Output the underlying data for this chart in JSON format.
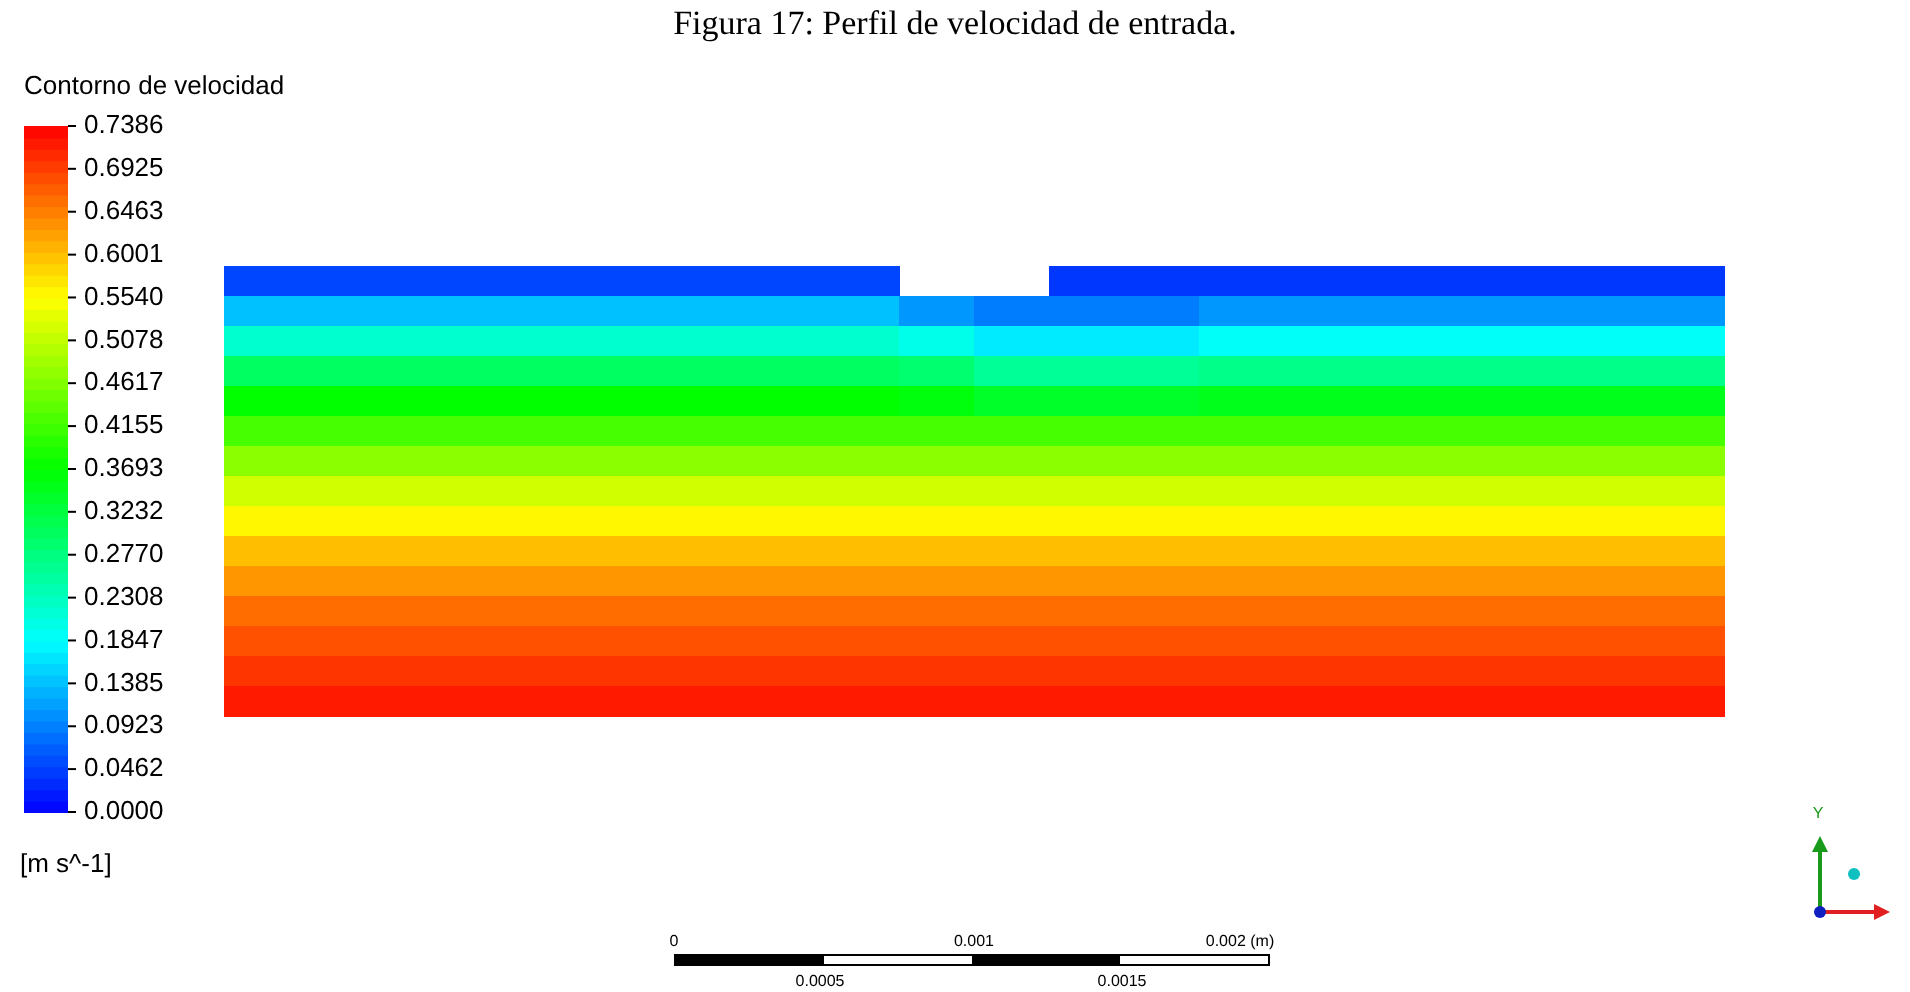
{
  "chart_data": {
    "type": "heatmap",
    "title": "Figura 17: Perfil de velocidad de entrada.",
    "clabel": "Contorno de velocidad",
    "categories": [
      null,
      null,
      null,
      null,
      null,
      null,
      null,
      null,
      null,
      null,
      null,
      null,
      null,
      null,
      null,
      null,
      null,
      null,
      null,
      null
    ],
    "y_categories": [
      null,
      null,
      null,
      null,
      null,
      null,
      null,
      null,
      null,
      null,
      null,
      null,
      null,
      null,
      null
    ],
    "cells": [
      [
        0.05,
        0.05,
        0.05,
        0.05,
        0.05,
        0.05,
        0.05,
        0.05,
        0.05,
        null,
        null,
        0.04,
        0.04,
        0.04,
        0.04,
        0.04,
        0.04,
        0.04,
        0.04,
        0.04
      ],
      [
        0.14,
        0.14,
        0.14,
        0.14,
        0.14,
        0.14,
        0.14,
        0.14,
        0.14,
        0.11,
        0.09,
        0.09,
        0.09,
        0.11,
        0.11,
        0.11,
        0.11,
        0.11,
        0.11,
        0.11
      ],
      [
        0.22,
        0.22,
        0.22,
        0.22,
        0.22,
        0.22,
        0.22,
        0.22,
        0.22,
        0.2,
        0.17,
        0.17,
        0.17,
        0.19,
        0.19,
        0.19,
        0.19,
        0.19,
        0.19,
        0.19
      ],
      [
        0.3,
        0.3,
        0.3,
        0.3,
        0.3,
        0.3,
        0.3,
        0.3,
        0.3,
        0.29,
        0.26,
        0.26,
        0.26,
        0.27,
        0.27,
        0.27,
        0.27,
        0.27,
        0.27,
        0.27
      ],
      [
        0.37,
        0.37,
        0.37,
        0.37,
        0.37,
        0.37,
        0.37,
        0.37,
        0.37,
        0.36,
        0.34,
        0.34,
        0.34,
        0.35,
        0.35,
        0.35,
        0.35,
        0.35,
        0.35,
        0.35
      ],
      [
        0.42,
        0.42,
        0.42,
        0.42,
        0.42,
        0.42,
        0.42,
        0.42,
        0.42,
        0.42,
        0.42,
        0.42,
        0.42,
        0.42,
        0.42,
        0.42,
        0.42,
        0.42,
        0.42,
        0.42
      ],
      [
        0.47,
        0.47,
        0.47,
        0.47,
        0.47,
        0.47,
        0.47,
        0.47,
        0.47,
        0.47,
        0.47,
        0.47,
        0.47,
        0.47,
        0.47,
        0.47,
        0.47,
        0.47,
        0.47,
        0.47
      ],
      [
        0.52,
        0.52,
        0.52,
        0.52,
        0.52,
        0.52,
        0.52,
        0.52,
        0.52,
        0.52,
        0.52,
        0.52,
        0.52,
        0.52,
        0.52,
        0.52,
        0.52,
        0.52,
        0.52,
        0.52
      ],
      [
        0.56,
        0.56,
        0.56,
        0.56,
        0.56,
        0.56,
        0.56,
        0.56,
        0.56,
        0.56,
        0.56,
        0.56,
        0.56,
        0.56,
        0.56,
        0.56,
        0.56,
        0.56,
        0.56,
        0.56
      ],
      [
        0.6,
        0.6,
        0.6,
        0.6,
        0.6,
        0.6,
        0.6,
        0.6,
        0.6,
        0.6,
        0.6,
        0.6,
        0.6,
        0.6,
        0.6,
        0.6,
        0.6,
        0.6,
        0.6,
        0.6
      ],
      [
        0.63,
        0.63,
        0.63,
        0.63,
        0.63,
        0.63,
        0.63,
        0.63,
        0.63,
        0.63,
        0.63,
        0.63,
        0.63,
        0.63,
        0.63,
        0.63,
        0.63,
        0.63,
        0.63,
        0.63
      ],
      [
        0.66,
        0.66,
        0.66,
        0.66,
        0.66,
        0.66,
        0.66,
        0.66,
        0.66,
        0.66,
        0.66,
        0.66,
        0.66,
        0.66,
        0.66,
        0.66,
        0.66,
        0.66,
        0.66,
        0.66
      ],
      [
        0.68,
        0.68,
        0.68,
        0.68,
        0.68,
        0.68,
        0.68,
        0.68,
        0.68,
        0.68,
        0.68,
        0.68,
        0.68,
        0.68,
        0.68,
        0.68,
        0.68,
        0.68,
        0.68,
        0.68
      ],
      [
        0.7,
        0.7,
        0.7,
        0.7,
        0.7,
        0.7,
        0.7,
        0.7,
        0.7,
        0.7,
        0.7,
        0.7,
        0.7,
        0.7,
        0.7,
        0.7,
        0.7,
        0.7,
        0.7,
        0.7
      ],
      [
        0.72,
        0.72,
        0.72,
        0.72,
        0.72,
        0.72,
        0.72,
        0.72,
        0.72,
        0.72,
        0.72,
        0.72,
        0.72,
        0.72,
        0.72,
        0.72,
        0.72,
        0.72,
        0.72,
        0.72
      ]
    ],
    "clim": [
      0,
      0.7386
    ],
    "cticks": [
      {
        "value": 0,
        "label": "0.0000"
      },
      {
        "value": 0.0462,
        "label": "0.0462"
      },
      {
        "value": 0.0923,
        "label": "0.0923"
      },
      {
        "value": 0.1385,
        "label": "0.1385"
      },
      {
        "value": 0.1847,
        "label": "0.1847"
      },
      {
        "value": 0.2308,
        "label": "0.2308"
      },
      {
        "value": 0.277,
        "label": "0.2770"
      },
      {
        "value": 0.3232,
        "label": "0.3232"
      },
      {
        "value": 0.3693,
        "label": "0.3693"
      },
      {
        "value": 0.4155,
        "label": "0.4155"
      },
      {
        "value": 0.4617,
        "label": "0.4617"
      },
      {
        "value": 0.5078,
        "label": "0.5078"
      },
      {
        "value": 0.554,
        "label": "0.5540"
      },
      {
        "value": 0.6001,
        "label": "0.6001"
      },
      {
        "value": 0.6463,
        "label": "0.6463"
      },
      {
        "value": 0.6925,
        "label": "0.6925"
      },
      {
        "value": 0.7386,
        "label": "0.7386"
      }
    ],
    "annotations": [
      "[m s^-1]",
      "0",
      "0.001",
      "0.002 (m)",
      "0.0005",
      "0.0015",
      "Y"
    ]
  }
}
